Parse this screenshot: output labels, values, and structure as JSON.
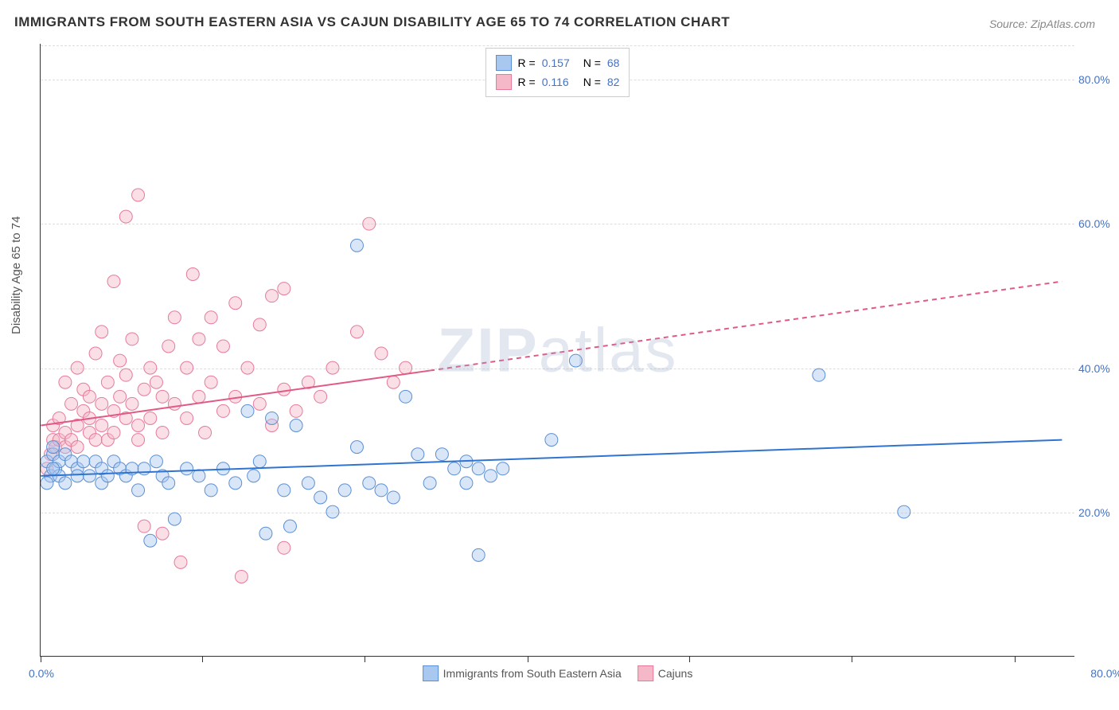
{
  "title": "IMMIGRANTS FROM SOUTH EASTERN ASIA VS CAJUN DISABILITY AGE 65 TO 74 CORRELATION CHART",
  "source": "Source: ZipAtlas.com",
  "watermark": "ZIPatlas",
  "y_axis_label": "Disability Age 65 to 74",
  "chart": {
    "type": "scatter",
    "background_color": "#ffffff",
    "grid_color": "#dddddd",
    "axis_color": "#333333",
    "text_color": "#555555",
    "tick_label_color": "#4472c4",
    "xlim": [
      0,
      85
    ],
    "ylim": [
      0,
      85
    ],
    "x_ticks": [
      0,
      13.3,
      26.6,
      40,
      53.3,
      66.6,
      80
    ],
    "y_ticks": [
      20,
      40,
      60,
      80
    ],
    "x_tick_labels": {
      "left": "0.0%",
      "right": "80.0%"
    },
    "y_tick_labels": [
      "20.0%",
      "40.0%",
      "60.0%",
      "80.0%"
    ],
    "marker_radius": 8,
    "marker_opacity": 0.45,
    "line_width": 2,
    "series": [
      {
        "name": "Immigrants from South Eastern Asia",
        "color_fill": "#a8c8f0",
        "color_stroke": "#5a8fd4",
        "line_color": "#3074d0",
        "R": "0.157",
        "N": "68",
        "trend": {
          "x1": 0,
          "y1": 25,
          "x2": 84,
          "y2": 30,
          "dash_after_x": null
        },
        "points": [
          [
            0.5,
            27
          ],
          [
            0.8,
            25
          ],
          [
            1,
            28
          ],
          [
            1,
            29
          ],
          [
            1.2,
            26
          ],
          [
            1.5,
            27
          ],
          [
            1.5,
            25
          ],
          [
            2,
            28
          ],
          [
            2,
            24
          ],
          [
            2.5,
            27
          ],
          [
            3,
            26
          ],
          [
            3,
            25
          ],
          [
            3.5,
            27
          ],
          [
            4,
            25
          ],
          [
            4.5,
            27
          ],
          [
            5,
            26
          ],
          [
            5,
            24
          ],
          [
            5.5,
            25
          ],
          [
            6,
            27
          ],
          [
            6.5,
            26
          ],
          [
            7,
            25
          ],
          [
            7.5,
            26
          ],
          [
            8,
            23
          ],
          [
            8.5,
            26
          ],
          [
            9,
            16
          ],
          [
            9.5,
            27
          ],
          [
            10,
            25
          ],
          [
            10.5,
            24
          ],
          [
            11,
            19
          ],
          [
            12,
            26
          ],
          [
            13,
            25
          ],
          [
            14,
            23
          ],
          [
            15,
            26
          ],
          [
            16,
            24
          ],
          [
            17,
            34
          ],
          [
            17.5,
            25
          ],
          [
            18,
            27
          ],
          [
            18.5,
            17
          ],
          [
            19,
            33
          ],
          [
            20,
            23
          ],
          [
            20.5,
            18
          ],
          [
            21,
            32
          ],
          [
            22,
            24
          ],
          [
            23,
            22
          ],
          [
            24,
            20
          ],
          [
            25,
            23
          ],
          [
            26,
            29
          ],
          [
            26,
            57
          ],
          [
            27,
            24
          ],
          [
            28,
            23
          ],
          [
            29,
            22
          ],
          [
            30,
            36
          ],
          [
            31,
            28
          ],
          [
            32,
            24
          ],
          [
            33,
            28
          ],
          [
            34,
            26
          ],
          [
            35,
            27
          ],
          [
            35,
            24
          ],
          [
            36,
            26
          ],
          [
            36,
            14
          ],
          [
            37,
            25
          ],
          [
            38,
            26
          ],
          [
            42,
            30
          ],
          [
            44,
            41
          ],
          [
            64,
            39
          ],
          [
            71,
            20
          ],
          [
            0.5,
            24
          ],
          [
            1,
            26
          ]
        ]
      },
      {
        "name": "Cajuns",
        "color_fill": "#f5b8c8",
        "color_stroke": "#e77a9a",
        "line_color": "#e05a85",
        "R": "0.116",
        "N": "82",
        "trend": {
          "x1": 0,
          "y1": 32,
          "x2": 84,
          "y2": 52,
          "dash_after_x": 32
        },
        "points": [
          [
            0.5,
            26
          ],
          [
            0.8,
            28
          ],
          [
            1,
            30
          ],
          [
            1,
            32
          ],
          [
            1.2,
            29
          ],
          [
            1.5,
            30
          ],
          [
            1.5,
            33
          ],
          [
            2,
            31
          ],
          [
            2,
            29
          ],
          [
            2,
            38
          ],
          [
            2.5,
            30
          ],
          [
            2.5,
            35
          ],
          [
            3,
            32
          ],
          [
            3,
            29
          ],
          [
            3,
            40
          ],
          [
            3.5,
            34
          ],
          [
            3.5,
            37
          ],
          [
            4,
            31
          ],
          [
            4,
            36
          ],
          [
            4,
            33
          ],
          [
            4.5,
            30
          ],
          [
            4.5,
            42
          ],
          [
            5,
            35
          ],
          [
            5,
            32
          ],
          [
            5,
            45
          ],
          [
            5.5,
            38
          ],
          [
            5.5,
            30
          ],
          [
            6,
            34
          ],
          [
            6,
            31
          ],
          [
            6,
            52
          ],
          [
            6.5,
            36
          ],
          [
            6.5,
            41
          ],
          [
            7,
            33
          ],
          [
            7,
            39
          ],
          [
            7,
            61
          ],
          [
            7.5,
            35
          ],
          [
            7.5,
            44
          ],
          [
            8,
            32
          ],
          [
            8,
            30
          ],
          [
            8,
            64
          ],
          [
            8.5,
            37
          ],
          [
            8.5,
            18
          ],
          [
            9,
            40
          ],
          [
            9,
            33
          ],
          [
            9.5,
            38
          ],
          [
            10,
            17
          ],
          [
            10,
            36
          ],
          [
            10,
            31
          ],
          [
            10.5,
            43
          ],
          [
            11,
            35
          ],
          [
            11,
            47
          ],
          [
            11.5,
            13
          ],
          [
            12,
            40
          ],
          [
            12,
            33
          ],
          [
            12.5,
            53
          ],
          [
            13,
            36
          ],
          [
            13,
            44
          ],
          [
            13.5,
            31
          ],
          [
            14,
            38
          ],
          [
            14,
            47
          ],
          [
            15,
            34
          ],
          [
            15,
            43
          ],
          [
            16,
            36
          ],
          [
            16,
            49
          ],
          [
            16.5,
            11
          ],
          [
            17,
            40
          ],
          [
            18,
            35
          ],
          [
            18,
            46
          ],
          [
            19,
            32
          ],
          [
            19,
            50
          ],
          [
            20,
            37
          ],
          [
            20,
            15
          ],
          [
            20,
            51
          ],
          [
            21,
            34
          ],
          [
            22,
            38
          ],
          [
            23,
            36
          ],
          [
            24,
            40
          ],
          [
            26,
            45
          ],
          [
            27,
            60
          ],
          [
            28,
            42
          ],
          [
            29,
            38
          ],
          [
            30,
            40
          ]
        ]
      }
    ]
  },
  "legend_top": {
    "r_label": "R =",
    "n_label": "N ="
  },
  "legend_bottom": {
    "items": [
      "Immigrants from South Eastern Asia",
      "Cajuns"
    ]
  }
}
